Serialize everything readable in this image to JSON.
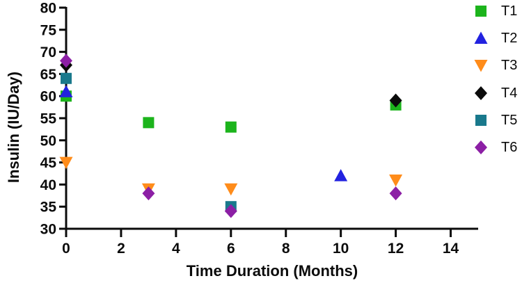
{
  "figure": {
    "background": "#ffffff",
    "axis_color": "#0b0b0b"
  },
  "chart_data": {
    "type": "scatter",
    "title": "",
    "xlabel": "Time Duration (Months)",
    "ylabel": "Insulin (IU/Day)",
    "xlim": [
      0,
      15
    ],
    "ylim": [
      30,
      80
    ],
    "xticks": [
      0,
      2,
      4,
      6,
      8,
      10,
      12,
      14
    ],
    "yticks": [
      30,
      35,
      40,
      45,
      50,
      55,
      60,
      65,
      70,
      75,
      80
    ],
    "grid": false,
    "legend_position": "right",
    "series": [
      {
        "name": "T1",
        "marker": "square",
        "color": "#1cb41c",
        "points": [
          [
            0,
            60
          ],
          [
            3,
            54
          ],
          [
            6,
            53
          ],
          [
            12,
            58
          ]
        ]
      },
      {
        "name": "T2",
        "marker": "triangle-up",
        "color": "#2222e0",
        "points": [
          [
            0,
            61
          ],
          [
            10,
            42
          ]
        ]
      },
      {
        "name": "T3",
        "marker": "triangle-down",
        "color": "#ff8c1a",
        "points": [
          [
            0,
            45
          ],
          [
            3,
            39
          ],
          [
            6,
            39
          ],
          [
            12,
            41
          ]
        ]
      },
      {
        "name": "T4",
        "marker": "diamond",
        "color": "#0b0b0b",
        "points": [
          [
            0,
            67
          ],
          [
            12,
            59
          ]
        ]
      },
      {
        "name": "T5",
        "marker": "square",
        "color": "#19798c",
        "points": [
          [
            0,
            64
          ],
          [
            6,
            35
          ]
        ]
      },
      {
        "name": "T6",
        "marker": "diamond",
        "color": "#8c1fa5",
        "points": [
          [
            0,
            68
          ],
          [
            3,
            38
          ],
          [
            6,
            34
          ],
          [
            12,
            38
          ]
        ]
      }
    ]
  }
}
